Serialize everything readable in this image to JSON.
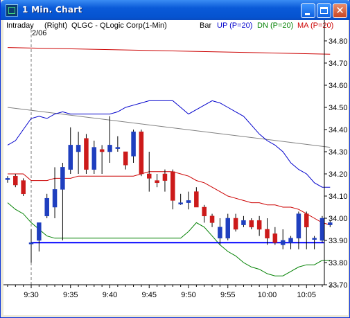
{
  "window": {
    "title": "1 Min. Chart",
    "buttons": [
      "minimize",
      "maximize",
      "close"
    ],
    "accent": "#0a5ad8"
  },
  "header": {
    "mode": "Intraday",
    "side": "(Right)",
    "symbol": "QLGC - QLogic Corp",
    "interval": "(1-Min)",
    "style": "Bar",
    "up_label": "UP (P=20)",
    "dn_label": "DN (P=20)",
    "ma_label": "MA (P=20)",
    "date_marker": "2/06"
  },
  "colors": {
    "up": "#0000cc",
    "dn": "#008000",
    "ma": "#cc0000",
    "up_candle": "#1f3fbf",
    "down_candle": "#cc1a1a",
    "trend": "#808080",
    "hline": "#0000ff"
  },
  "chart_data": {
    "type": "candlestick",
    "y_ticks": [
      "34.80",
      "34.70",
      "34.60",
      "34.50",
      "34.40",
      "34.30",
      "34.20",
      "34.10",
      "34.00",
      "33.90",
      "33.80",
      "33.70"
    ],
    "ylim": [
      33.7,
      34.8
    ],
    "x_ticks": [
      {
        "label": "9:30",
        "m": 30
      },
      {
        "label": "9:35",
        "m": 35
      },
      {
        "label": "9:40",
        "m": 40
      },
      {
        "label": "9:45",
        "m": 45
      },
      {
        "label": "9:50",
        "m": 50
      },
      {
        "label": "9:55",
        "m": 55
      },
      {
        "label": "10:00",
        "m": 60
      },
      {
        "label": "10:05",
        "m": 65
      }
    ],
    "session_start_minute": 30,
    "horizontal_line": 33.89,
    "candles": [
      {
        "m": 30,
        "o": 33.89,
        "h": 33.95,
        "l": 33.8,
        "c": 33.89
      },
      {
        "m": 31,
        "o": 33.9,
        "h": 33.98,
        "l": 33.85,
        "c": 33.98
      },
      {
        "m": 32,
        "o": 34.01,
        "h": 34.11,
        "l": 34.0,
        "c": 34.09
      },
      {
        "m": 33,
        "o": 34.05,
        "h": 34.23,
        "l": 34.0,
        "c": 34.13
      },
      {
        "m": 34,
        "o": 34.13,
        "h": 34.25,
        "l": 33.9,
        "c": 34.23
      },
      {
        "m": 35,
        "o": 34.22,
        "h": 34.41,
        "l": 34.2,
        "c": 34.33
      },
      {
        "m": 36,
        "o": 34.3,
        "h": 34.39,
        "l": 34.2,
        "c": 34.33
      },
      {
        "m": 37,
        "o": 34.36,
        "h": 34.38,
        "l": 34.2,
        "c": 34.22
      },
      {
        "m": 38,
        "o": 34.22,
        "h": 34.35,
        "l": 34.2,
        "c": 34.32
      },
      {
        "m": 39,
        "o": 34.31,
        "h": 34.33,
        "l": 34.2,
        "c": 34.3
      },
      {
        "m": 40,
        "o": 34.3,
        "h": 34.46,
        "l": 34.25,
        "c": 34.33
      },
      {
        "m": 41,
        "o": 34.32,
        "h": 34.37,
        "l": 34.3,
        "c": 34.32
      },
      {
        "m": 42,
        "o": 34.3,
        "h": 34.3,
        "l": 34.22,
        "c": 34.24
      },
      {
        "m": 43,
        "o": 34.28,
        "h": 34.4,
        "l": 34.25,
        "c": 34.39
      },
      {
        "m": 44,
        "o": 34.39,
        "h": 34.4,
        "l": 34.19,
        "c": 34.2
      },
      {
        "m": 45,
        "o": 34.2,
        "h": 34.3,
        "l": 34.12,
        "c": 34.18
      },
      {
        "m": 46,
        "o": 34.17,
        "h": 34.2,
        "l": 34.14,
        "c": 34.16
      },
      {
        "m": 47,
        "o": 34.2,
        "h": 34.22,
        "l": 34.12,
        "c": 34.17
      },
      {
        "m": 48,
        "o": 34.21,
        "h": 34.22,
        "l": 34.04,
        "c": 34.08
      },
      {
        "m": 49,
        "o": 34.07,
        "h": 34.11,
        "l": 34.06,
        "c": 34.07
      },
      {
        "m": 50,
        "o": 34.07,
        "h": 34.12,
        "l": 34.04,
        "c": 34.08
      },
      {
        "m": 51,
        "o": 34.12,
        "h": 34.14,
        "l": 34.05,
        "c": 34.05
      },
      {
        "m": 52,
        "o": 34.05,
        "h": 34.06,
        "l": 33.98,
        "c": 34.01
      },
      {
        "m": 53,
        "o": 34.01,
        "h": 34.02,
        "l": 33.96,
        "c": 33.98
      },
      {
        "m": 54,
        "o": 33.91,
        "h": 34.0,
        "l": 33.88,
        "c": 33.96
      },
      {
        "m": 55,
        "o": 33.91,
        "h": 34.02,
        "l": 33.9,
        "c": 34.0
      },
      {
        "m": 56,
        "o": 34.0,
        "h": 34.02,
        "l": 33.94,
        "c": 33.95
      },
      {
        "m": 57,
        "o": 33.97,
        "h": 34.01,
        "l": 33.96,
        "c": 33.99
      },
      {
        "m": 58,
        "o": 33.99,
        "h": 34.0,
        "l": 33.95,
        "c": 33.96
      },
      {
        "m": 59,
        "o": 33.99,
        "h": 34.01,
        "l": 33.92,
        "c": 33.95
      },
      {
        "m": 60,
        "o": 33.95,
        "h": 34.0,
        "l": 33.88,
        "c": 33.91
      },
      {
        "m": 61,
        "o": 33.93,
        "h": 33.96,
        "l": 33.88,
        "c": 33.89
      },
      {
        "m": 62,
        "o": 33.88,
        "h": 33.95,
        "l": 33.86,
        "c": 33.9
      },
      {
        "m": 63,
        "o": 33.89,
        "h": 33.92,
        "l": 33.86,
        "c": 33.91
      },
      {
        "m": 64,
        "o": 33.91,
        "h": 34.03,
        "l": 33.86,
        "c": 34.02
      },
      {
        "m": 65,
        "o": 34.02,
        "h": 34.03,
        "l": 33.86,
        "c": 33.96
      },
      {
        "m": 66,
        "o": 33.91,
        "h": 33.92,
        "l": 33.86,
        "c": 33.91
      },
      {
        "m": 67,
        "o": 33.9,
        "h": 34.01,
        "l": 33.89,
        "c": 34.0
      },
      {
        "m": 68,
        "o": 33.97,
        "h": 33.99,
        "l": 33.96,
        "c": 33.98
      }
    ],
    "left_stub_candles": [
      {
        "m": 27,
        "o": 34.18,
        "h": 34.19,
        "l": 34.16,
        "c": 34.18
      },
      {
        "m": 28,
        "o": 34.19,
        "h": 34.2,
        "l": 34.14,
        "c": 34.15
      },
      {
        "m": 29,
        "o": 34.17,
        "h": 34.18,
        "l": 34.1,
        "c": 34.11
      }
    ],
    "series": [
      {
        "name": "UP (P=20)",
        "points": [
          [
            27,
            34.33
          ],
          [
            28,
            34.35
          ],
          [
            29,
            34.4
          ],
          [
            30,
            34.45
          ],
          [
            31,
            34.46
          ],
          [
            32,
            34.45
          ],
          [
            33,
            34.47
          ],
          [
            34,
            34.48
          ],
          [
            35,
            34.47
          ],
          [
            36,
            34.47
          ],
          [
            37,
            34.47
          ],
          [
            38,
            34.47
          ],
          [
            39,
            34.47
          ],
          [
            40,
            34.47
          ],
          [
            41,
            34.48
          ],
          [
            42,
            34.5
          ],
          [
            43,
            34.51
          ],
          [
            44,
            34.52
          ],
          [
            45,
            34.53
          ],
          [
            46,
            34.53
          ],
          [
            47,
            34.53
          ],
          [
            48,
            34.53
          ],
          [
            49,
            34.5
          ],
          [
            50,
            34.47
          ],
          [
            51,
            34.49
          ],
          [
            52,
            34.51
          ],
          [
            53,
            34.53
          ],
          [
            54,
            34.52
          ],
          [
            55,
            34.5
          ],
          [
            56,
            34.48
          ],
          [
            57,
            34.46
          ],
          [
            58,
            34.42
          ],
          [
            59,
            34.38
          ],
          [
            60,
            34.35
          ],
          [
            61,
            34.33
          ],
          [
            62,
            34.3
          ],
          [
            63,
            34.25
          ],
          [
            64,
            34.22
          ],
          [
            65,
            34.2
          ],
          [
            66,
            34.16
          ],
          [
            67,
            34.14
          ],
          [
            68,
            34.14
          ]
        ]
      },
      {
        "name": "DN (P=20)",
        "points": [
          [
            27,
            34.07
          ],
          [
            28,
            34.04
          ],
          [
            29,
            34.02
          ],
          [
            30,
            33.98
          ],
          [
            31,
            33.95
          ],
          [
            32,
            33.92
          ],
          [
            33,
            33.91
          ],
          [
            34,
            33.91
          ],
          [
            35,
            33.91
          ],
          [
            36,
            33.91
          ],
          [
            37,
            33.91
          ],
          [
            38,
            33.91
          ],
          [
            39,
            33.91
          ],
          [
            40,
            33.91
          ],
          [
            41,
            33.91
          ],
          [
            42,
            33.91
          ],
          [
            43,
            33.91
          ],
          [
            44,
            33.91
          ],
          [
            45,
            33.91
          ],
          [
            46,
            33.91
          ],
          [
            47,
            33.91
          ],
          [
            48,
            33.91
          ],
          [
            49,
            33.91
          ],
          [
            50,
            33.94
          ],
          [
            51,
            33.98
          ],
          [
            52,
            33.96
          ],
          [
            53,
            33.92
          ],
          [
            54,
            33.88
          ],
          [
            55,
            33.85
          ],
          [
            56,
            33.83
          ],
          [
            57,
            33.8
          ],
          [
            58,
            33.78
          ],
          [
            59,
            33.77
          ],
          [
            60,
            33.75
          ],
          [
            61,
            33.74
          ],
          [
            62,
            33.74
          ],
          [
            63,
            33.76
          ],
          [
            64,
            33.78
          ],
          [
            65,
            33.79
          ],
          [
            66,
            33.79
          ],
          [
            67,
            33.81
          ],
          [
            68,
            33.81
          ]
        ]
      },
      {
        "name": "MA (P=20)",
        "points": [
          [
            27,
            34.2
          ],
          [
            28,
            34.2
          ],
          [
            29,
            34.2
          ],
          [
            30,
            34.17
          ],
          [
            31,
            34.17
          ],
          [
            32,
            34.17
          ],
          [
            33,
            34.18
          ],
          [
            34,
            34.18
          ],
          [
            35,
            34.18
          ],
          [
            36,
            34.19
          ],
          [
            37,
            34.19
          ],
          [
            38,
            34.19
          ],
          [
            39,
            34.19
          ],
          [
            40,
            34.19
          ],
          [
            41,
            34.19
          ],
          [
            42,
            34.19
          ],
          [
            43,
            34.19
          ],
          [
            44,
            34.2
          ],
          [
            45,
            34.21
          ],
          [
            46,
            34.21
          ],
          [
            47,
            34.21
          ],
          [
            48,
            34.21
          ],
          [
            49,
            34.2
          ],
          [
            50,
            34.19
          ],
          [
            51,
            34.17
          ],
          [
            52,
            34.16
          ],
          [
            53,
            34.14
          ],
          [
            54,
            34.12
          ],
          [
            55,
            34.1
          ],
          [
            56,
            34.09
          ],
          [
            57,
            34.08
          ],
          [
            58,
            34.07
          ],
          [
            59,
            34.07
          ],
          [
            60,
            34.06
          ],
          [
            61,
            34.06
          ],
          [
            62,
            34.05
          ],
          [
            63,
            34.05
          ],
          [
            64,
            34.04
          ],
          [
            65,
            34.02
          ],
          [
            66,
            34.0
          ],
          [
            67,
            33.98
          ],
          [
            68,
            33.97
          ]
        ]
      }
    ],
    "ma_long": [
      [
        27,
        34.77
      ],
      [
        68,
        34.74
      ]
    ],
    "trend_line": [
      [
        27,
        34.5
      ],
      [
        68,
        34.32
      ]
    ]
  }
}
